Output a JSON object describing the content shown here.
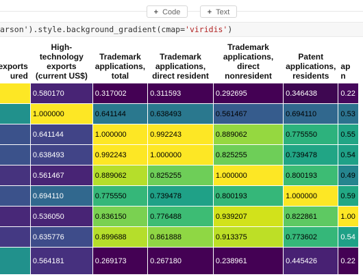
{
  "toolbar": {
    "code_label": "Code",
    "text_label": "Text"
  },
  "code": {
    "prefix": "arson').style.background_gradient(cmap=",
    "string": "'viridis'",
    "suffix": ")"
  },
  "table": {
    "columns": [
      "exports\nured",
      "High-technology exports (current US$)",
      "Trademark applications, total",
      "Trademark applications, direct resident",
      "Trademark applications, direct nonresident",
      "Patent applications, residents",
      "ap n"
    ],
    "rows": [
      {
        "cells": [
          "",
          "0.580170",
          "0.317002",
          "0.311593",
          "0.292695",
          "0.346438",
          "0.22"
        ],
        "colors": [
          "#fde725",
          "#482475",
          "#440154",
          "#440154",
          "#440154",
          "#3e0751",
          "#46085c"
        ],
        "light": [
          false,
          true,
          true,
          true,
          true,
          true,
          true
        ]
      },
      {
        "cells": [
          "",
          "1.000000",
          "0.641144",
          "0.638493",
          "0.561467",
          "0.694110",
          "0.53"
        ],
        "colors": [
          "#21918c",
          "#fde725",
          "#2a788e",
          "#2a788e",
          "#365c8d",
          "#31688e",
          "#2c728e"
        ],
        "light": [
          false,
          false,
          false,
          false,
          false,
          false,
          false
        ]
      },
      {
        "cells": [
          "",
          "0.641144",
          "1.000000",
          "0.992243",
          "0.889062",
          "0.775550",
          "0.55"
        ],
        "colors": [
          "#3b528b",
          "#414487",
          "#fde725",
          "#fde725",
          "#95d840",
          "#2db27d",
          "#21a585"
        ],
        "light": [
          true,
          true,
          false,
          false,
          false,
          false,
          false
        ]
      },
      {
        "cells": [
          "",
          "0.638493",
          "0.992243",
          "1.000000",
          "0.825255",
          "0.739478",
          "0.54"
        ],
        "colors": [
          "#3b528b",
          "#414487",
          "#fde725",
          "#fde725",
          "#6ece58",
          "#21a585",
          "#1fa187"
        ],
        "light": [
          true,
          true,
          false,
          false,
          false,
          false,
          false
        ]
      },
      {
        "cells": [
          "",
          "0.561467",
          "0.889062",
          "0.825255",
          "1.000000",
          "0.800193",
          "0.49"
        ],
        "colors": [
          "#46337e",
          "#482475",
          "#b5de2b",
          "#6ece58",
          "#fde725",
          "#3dbc74",
          "#25858e"
        ],
        "light": [
          true,
          true,
          false,
          false,
          false,
          false,
          false
        ]
      },
      {
        "cells": [
          "",
          "0.694110",
          "0.775550",
          "0.739478",
          "0.800193",
          "1.000000",
          "0.59"
        ],
        "colors": [
          "#3b528b",
          "#31688e",
          "#35b779",
          "#1fa187",
          "#35b779",
          "#fde725",
          "#22a884"
        ],
        "light": [
          true,
          true,
          false,
          false,
          false,
          false,
          false
        ]
      },
      {
        "cells": [
          "",
          "0.536050",
          "0.836150",
          "0.776488",
          "0.939207",
          "0.822861",
          "1.00"
        ],
        "colors": [
          "#482878",
          "#482475",
          "#7ad151",
          "#3dbc74",
          "#d2e21b",
          "#5ec962",
          "#fde725"
        ],
        "light": [
          true,
          true,
          false,
          false,
          false,
          false,
          false
        ]
      },
      {
        "cells": [
          "",
          "0.635776",
          "0.899688",
          "0.861888",
          "0.913375",
          "0.773602",
          "0.54"
        ],
        "colors": [
          "#443983",
          "#3e4c8a",
          "#b5de2b",
          "#8fd744",
          "#bddf26",
          "#35b779",
          "#1fa187"
        ],
        "light": [
          true,
          true,
          false,
          false,
          false,
          false,
          true
        ]
      },
      {
        "cells": [
          "",
          "0.564181",
          "0.269173",
          "0.267180",
          "0.238961",
          "0.445426",
          "0.22"
        ],
        "colors": [
          "#21918c",
          "#46307e",
          "#440154",
          "#440154",
          "#440154",
          "#482173",
          "#440154"
        ],
        "light": [
          false,
          true,
          true,
          true,
          true,
          true,
          true
        ]
      }
    ]
  }
}
